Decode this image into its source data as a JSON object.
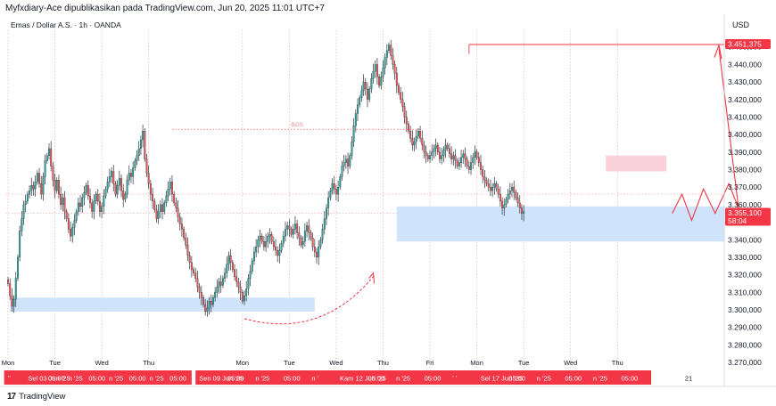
{
  "header": {
    "caption": "Myfxdiary-Ace dipublikasikan pada TradingView.com, Jun 20, 2025 11:01 UTC+7",
    "symbol_line": "Emas / Dollar A.S. · 1h · OANDA",
    "currency": "USD"
  },
  "footer": {
    "brand_glyph": "17",
    "brand": "TradingView"
  },
  "colors": {
    "up": "#26a69a",
    "down": "#ef5350",
    "candle": "#2a2e39",
    "accent": "#f23645",
    "zone": "#cfe3fb",
    "supply": "#fbd2dc",
    "grid": "#f0a0a0"
  },
  "chart_data": {
    "type": "candlestick",
    "title": "",
    "xlabel": "",
    "ylabel": "USD",
    "ylim": [
      3266,
      3460
    ],
    "y_ticks": [
      "3.450,000",
      "3.440,000",
      "3.430,000",
      "3.420,000",
      "3.410,000",
      "3.400,000",
      "3.390,000",
      "3.380,000",
      "3.370,000",
      "3.360,000",
      "3.350,000",
      "3.340,000",
      "3.330,000",
      "3.320,000",
      "3.310,000",
      "3.300,000",
      "3.290,000",
      "3.280,000",
      "3.270,000"
    ],
    "y_tick_values": [
      3450,
      3440,
      3430,
      3420,
      3410,
      3400,
      3390,
      3380,
      3370,
      3360,
      3350,
      3340,
      3330,
      3320,
      3310,
      3300,
      3290,
      3280,
      3270
    ],
    "price_labels": [
      {
        "value": 3451.375,
        "text": "3.451,375"
      },
      {
        "value": 3355.1,
        "text": "3.355,100",
        "sub": "58:04"
      }
    ],
    "x_ticks": [
      {
        "label": "Mon",
        "x_index": 0
      },
      {
        "label": "Tue",
        "x_index": 24
      },
      {
        "label": "Wed",
        "x_index": 48
      },
      {
        "label": "Thu",
        "x_index": 72
      },
      {
        "label": "Mon",
        "x_index": 120
      },
      {
        "label": "Tue",
        "x_index": 144
      },
      {
        "label": "Wed",
        "x_index": 168
      },
      {
        "label": "Thu",
        "x_index": 192
      },
      {
        "label": "Fri",
        "x_index": 216
      },
      {
        "label": "Mon",
        "x_index": 240
      },
      {
        "label": "Tue",
        "x_index": 264
      },
      {
        "label": "Wed",
        "x_index": 288
      },
      {
        "label": "Thu",
        "x_index": 312
      }
    ],
    "x_axis_overlays": [
      {
        "from_index": -2,
        "to_index": 94,
        "labels": [
          "ʼʼ",
          "Sel 03 Jun '25",
          "05:00",
          "n '25",
          "05:00",
          "n '25",
          "05:00",
          "n '25",
          "05:00"
        ]
      },
      {
        "from_index": 96,
        "to_index": 334,
        "labels": [
          "Sen 09 Jun '25",
          "05:00",
          "n '25",
          "05:00",
          "n '",
          "Kam 12 Jun '25",
          "05:00",
          "n '25",
          "05:00",
          "ʼ ʼ",
          "Sel 17 Jun '25",
          "05:00",
          "n '25",
          "05:00",
          "n '25",
          "05:00"
        ]
      }
    ],
    "x_extra_label": "21",
    "annotation_bos": "BOS",
    "series": [
      {
        "name": "",
        "close": [
          3315,
          3308,
          3302,
          3306,
          3318,
          3330,
          3345,
          3352,
          3360,
          3362,
          3366,
          3368,
          3371,
          3369,
          3373,
          3378,
          3372,
          3366,
          3376,
          3385,
          3388,
          3392,
          3382,
          3374,
          3368,
          3374,
          3366,
          3360,
          3364,
          3356,
          3352,
          3346,
          3342,
          3347,
          3351,
          3356,
          3361,
          3359,
          3364,
          3367,
          3371,
          3365,
          3361,
          3356,
          3362,
          3366,
          3362,
          3356,
          3359,
          3365,
          3369,
          3373,
          3376,
          3379,
          3372,
          3366,
          3371,
          3375,
          3368,
          3363,
          3366,
          3374,
          3378,
          3376,
          3381,
          3385,
          3388,
          3392,
          3397,
          3402,
          3386,
          3378,
          3372,
          3366,
          3362,
          3357,
          3352,
          3356,
          3360,
          3356,
          3361,
          3365,
          3369,
          3373,
          3366,
          3361,
          3358,
          3353,
          3349,
          3346,
          3341,
          3337,
          3331,
          3327,
          3323,
          3321,
          3318,
          3313,
          3310,
          3307,
          3303,
          3299,
          3301,
          3305,
          3303,
          3307,
          3310,
          3313,
          3316,
          3314,
          3318,
          3321,
          3326,
          3331,
          3327,
          3323,
          3319,
          3316,
          3313,
          3310,
          3305,
          3308,
          3312,
          3318,
          3322,
          3328,
          3333,
          3336,
          3340,
          3342,
          3339,
          3336,
          3339,
          3342,
          3343,
          3339,
          3336,
          3334,
          3331,
          3334,
          3338,
          3342,
          3346,
          3348,
          3346,
          3343,
          3346,
          3349,
          3344,
          3341,
          3337,
          3339,
          3345,
          3348,
          3344,
          3341,
          3336,
          3333,
          3330,
          3336,
          3340,
          3346,
          3352,
          3358,
          3364,
          3368,
          3372,
          3369,
          3366,
          3370,
          3376,
          3382,
          3384,
          3386,
          3382,
          3388,
          3396,
          3405,
          3412,
          3417,
          3421,
          3425,
          3430,
          3426,
          3420,
          3426,
          3432,
          3436,
          3440,
          3433,
          3428,
          3433,
          3438,
          3444,
          3448,
          3451,
          3445,
          3440,
          3435,
          3428,
          3424,
          3420,
          3416,
          3410,
          3406,
          3402,
          3398,
          3394,
          3396,
          3399,
          3402,
          3398,
          3394,
          3390,
          3388,
          3386,
          3388,
          3390,
          3392,
          3394,
          3390,
          3386,
          3388,
          3391,
          3394,
          3392,
          3389,
          3386,
          3388,
          3385,
          3382,
          3384,
          3387,
          3389,
          3386,
          3382,
          3380,
          3384,
          3387,
          3390,
          3387,
          3384,
          3380,
          3376,
          3374,
          3372,
          3370,
          3368,
          3370,
          3372,
          3369,
          3366,
          3362,
          3358,
          3360,
          3363,
          3366,
          3368,
          3370,
          3367,
          3364,
          3361,
          3358,
          3355,
          3356
        ],
        "open_offset": 2.2
      }
    ]
  }
}
